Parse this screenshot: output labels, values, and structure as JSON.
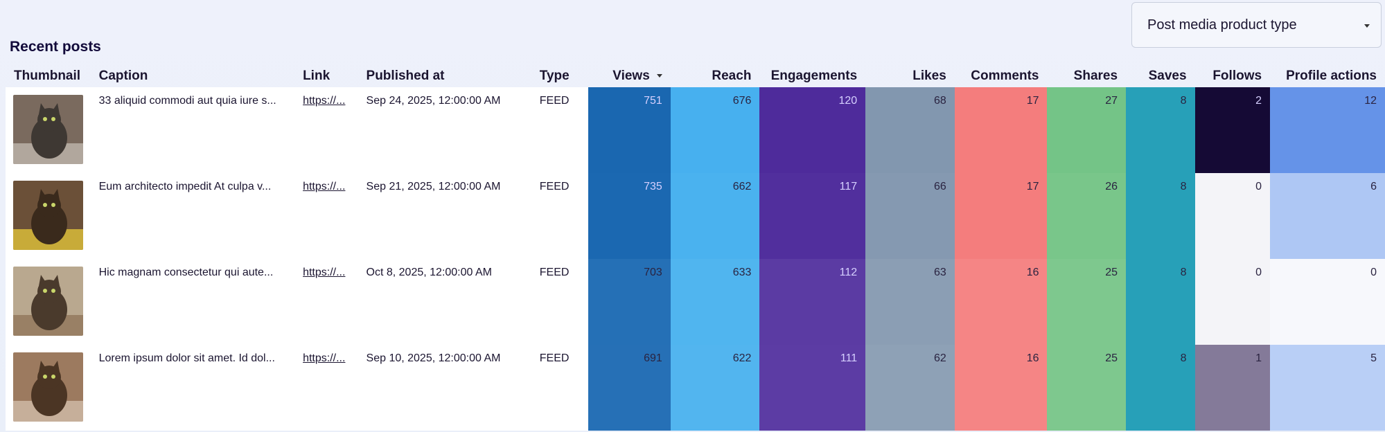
{
  "title": "Recent posts",
  "filter": {
    "label": "Post media product type"
  },
  "columns": [
    "Thumbnail",
    "Caption",
    "Link",
    "Published at",
    "Type",
    "Views",
    "Reach",
    "Engagements",
    "Likes",
    "Comments",
    "Shares",
    "Saves",
    "Follows",
    "Profile actions"
  ],
  "rows": [
    {
      "thumb": "cat-photo-1",
      "caption": "33 aliquid commodi aut quia iure s...",
      "link": "https://...",
      "published": "Sep 24, 2025, 12:00:00 AM",
      "type": "FEED",
      "views": "751",
      "reach": "676",
      "engagements": "120",
      "likes": "68",
      "comments": "17",
      "shares": "27",
      "saves": "8",
      "follows": "2",
      "profile_actions": "12"
    },
    {
      "thumb": "cat-photo-2",
      "caption": "Eum architecto impedit At culpa v...",
      "link": "https://...",
      "published": "Sep 21, 2025, 12:00:00 AM",
      "type": "FEED",
      "views": "735",
      "reach": "662",
      "engagements": "117",
      "likes": "66",
      "comments": "17",
      "shares": "26",
      "saves": "8",
      "follows": "0",
      "profile_actions": "6"
    },
    {
      "thumb": "cat-photo-3",
      "caption": "Hic magnam consectetur qui aute...",
      "link": "https://...",
      "published": "Oct 8, 2025, 12:00:00 AM",
      "type": "FEED",
      "views": "703",
      "reach": "633",
      "engagements": "112",
      "likes": "63",
      "comments": "16",
      "shares": "25",
      "saves": "8",
      "follows": "0",
      "profile_actions": "0"
    },
    {
      "thumb": "cat-photo-4",
      "caption": "Lorem ipsum dolor sit amet. Id dol...",
      "link": "https://...",
      "published": "Sep 10, 2025, 12:00:00 AM",
      "type": "FEED",
      "views": "691",
      "reach": "622",
      "engagements": "111",
      "likes": "62",
      "comments": "16",
      "shares": "25",
      "saves": "8",
      "follows": "1",
      "profile_actions": "5"
    }
  ],
  "colors": {
    "views": [
      "#1a67b0",
      "#1b68b1",
      "#2570b6",
      "#2670b6"
    ],
    "reach": [
      "#47b0ef",
      "#4ab2ef",
      "#50b5ef",
      "#52b5ef"
    ],
    "engagements": [
      "#4e2b9b",
      "#512f9d",
      "#5b3ba3",
      "#5c3ca4"
    ],
    "likes": [
      "#8297af",
      "#8599b1",
      "#8b9eb4",
      "#8ea1b6"
    ],
    "comments": [
      "#f47d7d",
      "#f47d7d",
      "#f58585",
      "#f58585"
    ],
    "shares": [
      "#74c487",
      "#79c68a",
      "#7ec88e",
      "#7ec88e"
    ],
    "saves": [
      "#27a0b8",
      "#27a0b8",
      "#27a0b8",
      "#27a0b8"
    ],
    "follows": [
      "#150a35",
      "#f4f4f8",
      "#f4f4f8",
      "#847a99"
    ],
    "profile_actions": [
      "#6593e8",
      "#aec7f4",
      "#f7f8fc",
      "#b9cff6"
    ],
    "text_light": [
      "views-0",
      "views-1",
      "engagements-0",
      "engagements-1",
      "engagements-2",
      "engagements-3",
      "follows-0"
    ]
  }
}
